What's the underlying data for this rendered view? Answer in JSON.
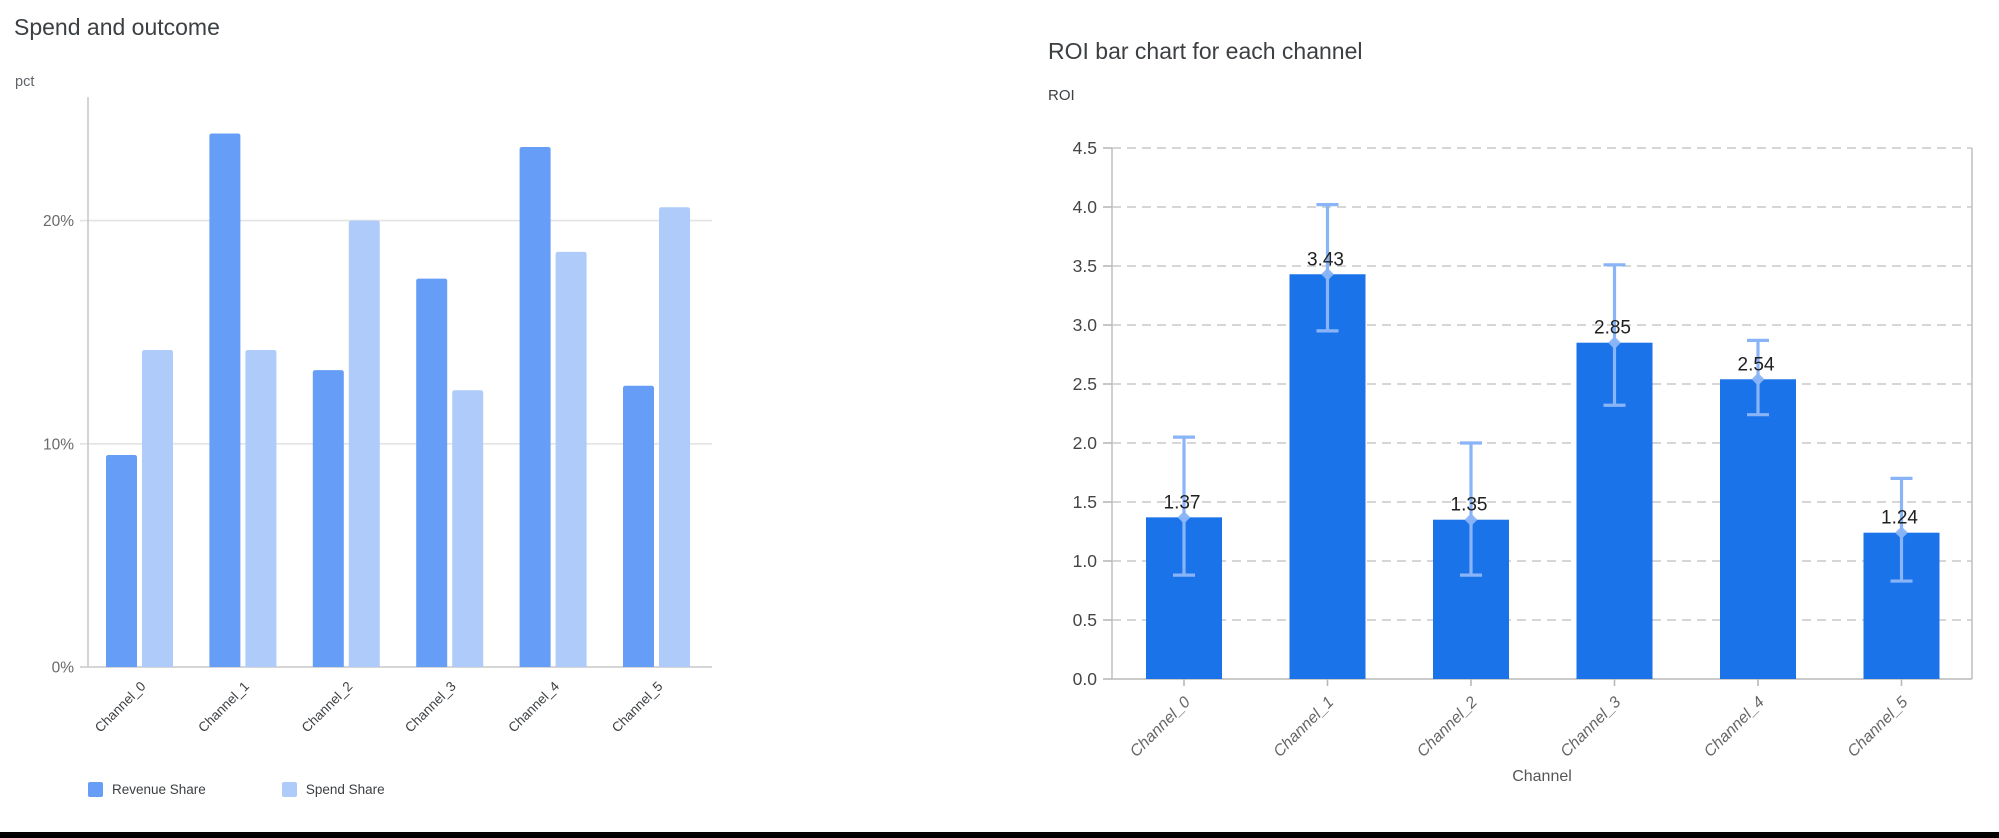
{
  "chart_data": [
    {
      "type": "bar",
      "title": "Spend and outcome",
      "ylabel": "pct",
      "xlabel": "",
      "categories": [
        "Channel_0",
        "Channel_1",
        "Channel_2",
        "Channel_3",
        "Channel_4",
        "Channel_5"
      ],
      "series": [
        {
          "name": "Revenue Share",
          "color": "#669df6",
          "values": [
            9.5,
            23.9,
            13.3,
            17.4,
            23.3,
            12.6
          ]
        },
        {
          "name": "Spend Share",
          "color": "#aecbfa",
          "values": [
            14.2,
            14.2,
            20.0,
            12.4,
            18.6,
            20.6
          ]
        }
      ],
      "y_ticks": [
        {
          "value": 0,
          "label": "0%"
        },
        {
          "value": 10,
          "label": "10%"
        },
        {
          "value": 20,
          "label": "20%"
        }
      ],
      "ylim": [
        0,
        25.5
      ],
      "grid": "horizontal-solid",
      "legend_position": "bottom"
    },
    {
      "type": "bar",
      "title": "ROI bar chart for each channel",
      "ylabel": "ROI",
      "xlabel": "Channel",
      "categories": [
        "Channel_0",
        "Channel_1",
        "Channel_2",
        "Channel_3",
        "Channel_4",
        "Channel_5"
      ],
      "values": [
        1.37,
        3.43,
        1.35,
        2.85,
        2.54,
        1.24
      ],
      "bar_labels": [
        "1.37",
        "3.43",
        "1.35",
        "2.85",
        "2.54",
        "1.24"
      ],
      "error_low": [
        0.88,
        2.95,
        0.88,
        2.32,
        2.24,
        0.83
      ],
      "error_high": [
        2.05,
        4.02,
        2.0,
        3.51,
        2.87,
        1.7
      ],
      "bar_color": "#1a73e8",
      "error_bar_color": "#8ab4f8",
      "ylim": [
        0,
        4.5
      ],
      "y_tick_step": 0.5,
      "grid": "horizontal-dashed",
      "legend_position": "none"
    }
  ]
}
